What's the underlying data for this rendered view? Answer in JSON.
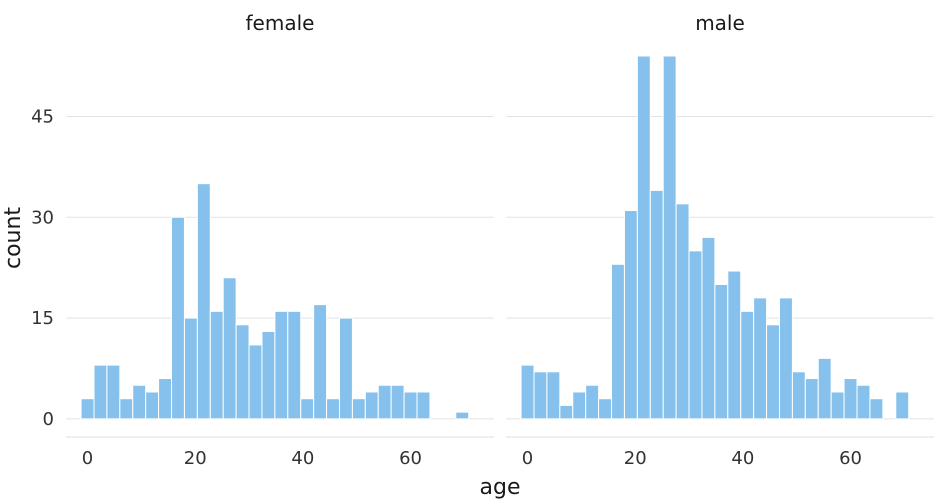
{
  "chart_data": {
    "type": "bar",
    "xlabel": "age",
    "ylabel": "count",
    "yticks": [
      0,
      15,
      30,
      45
    ],
    "xticks": [
      0,
      20,
      40,
      60
    ],
    "xlim": [
      -4,
      75.5
    ],
    "ylim": [
      -2.7,
      54
    ],
    "bar_color": "#85C1EC",
    "grid": true,
    "facets": [
      {
        "name": "female",
        "bins": [
          {
            "x": 0,
            "count": 3
          },
          {
            "x": 2.4,
            "count": 8
          },
          {
            "x": 4.8,
            "count": 8
          },
          {
            "x": 7.2,
            "count": 3
          },
          {
            "x": 9.6,
            "count": 5
          },
          {
            "x": 12.0,
            "count": 4
          },
          {
            "x": 14.4,
            "count": 6
          },
          {
            "x": 16.8,
            "count": 30
          },
          {
            "x": 19.2,
            "count": 15
          },
          {
            "x": 21.6,
            "count": 35
          },
          {
            "x": 24.0,
            "count": 16
          },
          {
            "x": 26.4,
            "count": 21
          },
          {
            "x": 28.8,
            "count": 14
          },
          {
            "x": 31.2,
            "count": 11
          },
          {
            "x": 33.6,
            "count": 13
          },
          {
            "x": 36.0,
            "count": 16
          },
          {
            "x": 38.4,
            "count": 16
          },
          {
            "x": 40.8,
            "count": 3
          },
          {
            "x": 43.2,
            "count": 17
          },
          {
            "x": 45.6,
            "count": 3
          },
          {
            "x": 48.0,
            "count": 15
          },
          {
            "x": 50.4,
            "count": 3
          },
          {
            "x": 52.8,
            "count": 4
          },
          {
            "x": 55.2,
            "count": 5
          },
          {
            "x": 57.6,
            "count": 5
          },
          {
            "x": 60.0,
            "count": 4
          },
          {
            "x": 62.4,
            "count": 4
          },
          {
            "x": 64.8,
            "count": 0
          },
          {
            "x": 67.2,
            "count": 0
          },
          {
            "x": 69.6,
            "count": 1
          }
        ]
      },
      {
        "name": "male",
        "bins": [
          {
            "x": 0,
            "count": 8
          },
          {
            "x": 2.4,
            "count": 7
          },
          {
            "x": 4.8,
            "count": 7
          },
          {
            "x": 7.2,
            "count": 2
          },
          {
            "x": 9.6,
            "count": 4
          },
          {
            "x": 12.0,
            "count": 5
          },
          {
            "x": 14.4,
            "count": 3
          },
          {
            "x": 16.8,
            "count": 23
          },
          {
            "x": 19.2,
            "count": 31
          },
          {
            "x": 21.6,
            "count": 54
          },
          {
            "x": 24.0,
            "count": 34
          },
          {
            "x": 26.4,
            "count": 54
          },
          {
            "x": 28.8,
            "count": 32
          },
          {
            "x": 31.2,
            "count": 25
          },
          {
            "x": 33.6,
            "count": 27
          },
          {
            "x": 36.0,
            "count": 20
          },
          {
            "x": 38.4,
            "count": 22
          },
          {
            "x": 40.8,
            "count": 16
          },
          {
            "x": 43.2,
            "count": 18
          },
          {
            "x": 45.6,
            "count": 14
          },
          {
            "x": 48.0,
            "count": 18
          },
          {
            "x": 50.4,
            "count": 7
          },
          {
            "x": 52.8,
            "count": 6
          },
          {
            "x": 55.2,
            "count": 9
          },
          {
            "x": 57.6,
            "count": 4
          },
          {
            "x": 60.0,
            "count": 6
          },
          {
            "x": 62.4,
            "count": 5
          },
          {
            "x": 64.8,
            "count": 3
          },
          {
            "x": 67.2,
            "count": 0
          },
          {
            "x": 69.6,
            "count": 4
          }
        ]
      }
    ]
  }
}
